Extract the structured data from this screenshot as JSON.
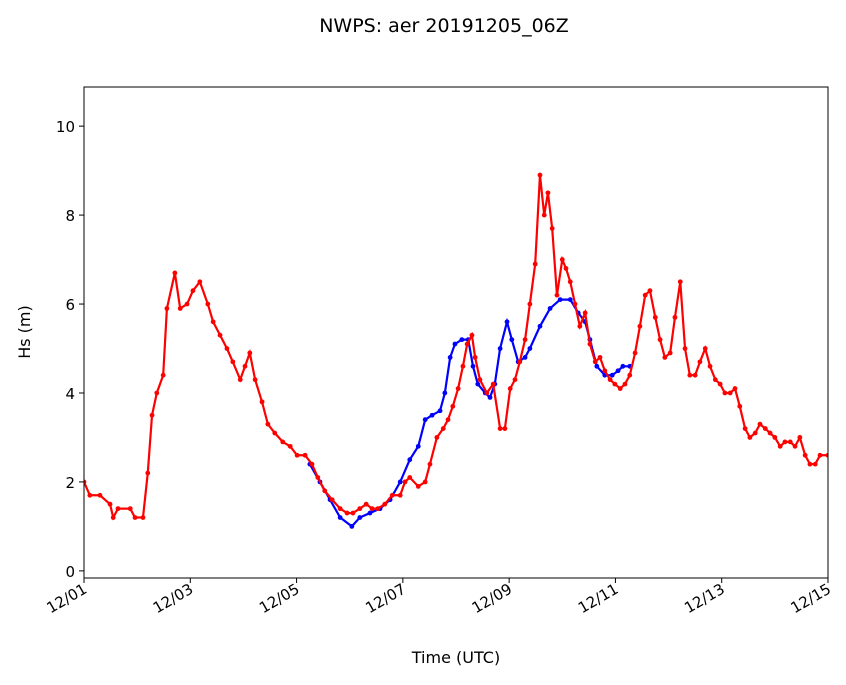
{
  "chart_data": {
    "type": "line",
    "title": "NWPS: aer 20191205_06Z",
    "x_label": "Time (UTC)",
    "y_label": "Hs (m)",
    "xlim": [
      0,
      14
    ],
    "ylim": [
      -0.16,
      10.88
    ],
    "xticks": [
      {
        "value": 0,
        "label": "12/01"
      },
      {
        "value": 2,
        "label": "12/03"
      },
      {
        "value": 4,
        "label": "12/05"
      },
      {
        "value": 6,
        "label": "12/07"
      },
      {
        "value": 8,
        "label": "12/09"
      },
      {
        "value": 10,
        "label": "12/11"
      },
      {
        "value": 12,
        "label": "12/13"
      },
      {
        "value": 14,
        "label": "12/15"
      }
    ],
    "yticks": [
      0,
      2,
      4,
      6,
      8,
      10
    ],
    "series": [
      {
        "color": "#0000ff",
        "x": [
          4.25,
          4.44,
          4.63,
          4.82,
          5.04,
          5.19,
          5.38,
          5.57,
          5.76,
          5.95,
          6.13,
          6.29,
          6.42,
          6.55,
          6.7,
          6.79,
          6.89,
          6.98,
          7.11,
          7.23,
          7.32,
          7.41,
          7.55,
          7.64,
          7.73,
          7.83,
          7.96,
          8.05,
          8.17,
          8.3,
          8.39,
          8.58,
          8.77,
          8.96,
          9.15,
          9.3,
          9.43,
          9.52,
          9.65,
          9.8,
          9.94,
          10.05,
          10.14,
          10.27
        ],
        "values": [
          2.4,
          2.0,
          1.6,
          1.2,
          1.0,
          1.2,
          1.3,
          1.4,
          1.6,
          2.0,
          2.5,
          2.8,
          3.4,
          3.5,
          3.6,
          4.0,
          4.8,
          5.1,
          5.2,
          5.2,
          4.6,
          4.2,
          4.0,
          3.9,
          4.2,
          5.0,
          5.6,
          5.2,
          4.7,
          4.8,
          5.0,
          5.5,
          5.9,
          6.1,
          6.1,
          5.8,
          5.6,
          5.2,
          4.6,
          4.4,
          4.4,
          4.5,
          4.6,
          4.6
        ]
      },
      {
        "color": "#ff0000",
        "x": [
          0,
          0.11,
          0.3,
          0.49,
          0.55,
          0.64,
          0.87,
          0.96,
          1.11,
          1.2,
          1.28,
          1.37,
          1.49,
          1.56,
          1.71,
          1.81,
          1.94,
          2.05,
          2.18,
          2.33,
          2.43,
          2.56,
          2.69,
          2.8,
          2.94,
          3.03,
          3.12,
          3.22,
          3.35,
          3.46,
          3.59,
          3.74,
          3.88,
          4.01,
          4.16,
          4.29,
          4.4,
          4.53,
          4.67,
          4.82,
          4.95,
          5.06,
          5.19,
          5.31,
          5.42,
          5.53,
          5.66,
          5.8,
          5.95,
          6.04,
          6.13,
          6.29,
          6.42,
          6.51,
          6.64,
          6.76,
          6.85,
          6.94,
          7.04,
          7.13,
          7.21,
          7.3,
          7.36,
          7.45,
          7.58,
          7.7,
          7.83,
          7.92,
          8.02,
          8.11,
          8.2,
          8.3,
          8.39,
          8.49,
          8.58,
          8.66,
          8.73,
          8.81,
          8.9,
          9.0,
          9.07,
          9.15,
          9.24,
          9.33,
          9.43,
          9.52,
          9.62,
          9.71,
          9.8,
          9.9,
          9.99,
          10.09,
          10.18,
          10.27,
          10.37,
          10.46,
          10.56,
          10.65,
          10.75,
          10.84,
          10.93,
          11.03,
          11.12,
          11.22,
          11.31,
          11.4,
          11.5,
          11.59,
          11.69,
          11.78,
          11.88,
          11.97,
          12.06,
          12.16,
          12.25,
          12.34,
          12.44,
          12.53,
          12.63,
          12.72,
          12.82,
          12.91,
          13.0,
          13.1,
          13.19,
          13.29,
          13.38,
          13.47,
          13.57,
          13.66,
          13.76,
          13.85,
          14
        ],
        "values": [
          2.0,
          1.7,
          1.7,
          1.5,
          1.2,
          1.4,
          1.4,
          1.2,
          1.2,
          2.2,
          3.5,
          4.0,
          4.4,
          5.9,
          6.7,
          5.9,
          6.0,
          6.3,
          6.5,
          6.0,
          5.6,
          5.3,
          5.0,
          4.7,
          4.3,
          4.6,
          4.9,
          4.3,
          3.8,
          3.3,
          3.1,
          2.9,
          2.8,
          2.6,
          2.6,
          2.4,
          2.1,
          1.8,
          1.6,
          1.4,
          1.3,
          1.3,
          1.4,
          1.5,
          1.4,
          1.4,
          1.5,
          1.7,
          1.7,
          2.0,
          2.1,
          1.9,
          2.0,
          2.4,
          3.0,
          3.2,
          3.4,
          3.7,
          4.1,
          4.6,
          5.1,
          5.3,
          4.8,
          4.3,
          4.0,
          4.2,
          3.2,
          3.2,
          4.1,
          4.3,
          4.7,
          5.2,
          6.0,
          6.9,
          8.9,
          8.0,
          8.5,
          7.7,
          6.2,
          7.0,
          6.8,
          6.5,
          6.0,
          5.5,
          5.8,
          5.1,
          4.7,
          4.8,
          4.5,
          4.3,
          4.2,
          4.1,
          4.2,
          4.4,
          4.9,
          5.5,
          6.2,
          6.3,
          5.7,
          5.2,
          4.8,
          4.9,
          5.7,
          6.5,
          5.0,
          4.4,
          4.4,
          4.7,
          5.0,
          4.6,
          4.3,
          4.2,
          4.0,
          4.0,
          4.1,
          3.7,
          3.2,
          3.0,
          3.1,
          3.3,
          3.2,
          3.1,
          3.0,
          2.8,
          2.9,
          2.9,
          2.8,
          3.0,
          2.6,
          2.4,
          2.4,
          2.6,
          2.6
        ]
      }
    ]
  }
}
